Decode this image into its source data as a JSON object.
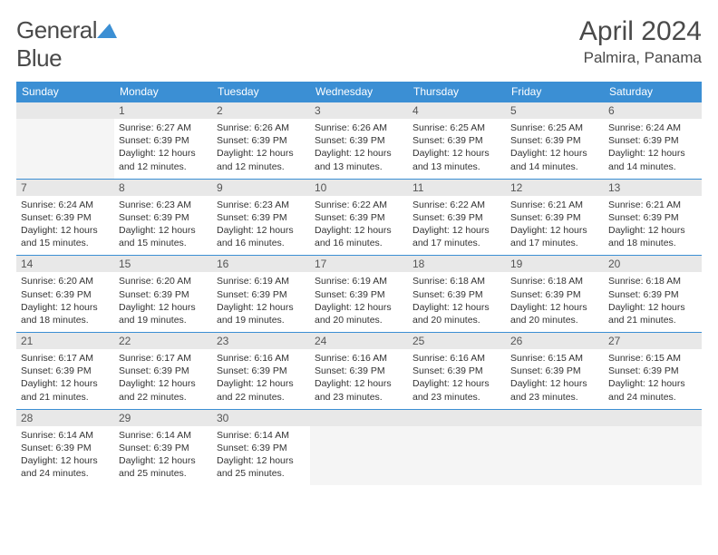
{
  "logo": {
    "text_part1": "General",
    "text_part2": "Blue"
  },
  "title": "April 2024",
  "location": "Palmira, Panama",
  "colors": {
    "header_bg": "#3b8fd4",
    "daynum_bg": "#e8e8e8",
    "text": "#333333",
    "title": "#4a4a4a"
  },
  "day_names": [
    "Sunday",
    "Monday",
    "Tuesday",
    "Wednesday",
    "Thursday",
    "Friday",
    "Saturday"
  ],
  "weeks": [
    [
      null,
      {
        "n": "1",
        "sr": "Sunrise: 6:27 AM",
        "ss": "Sunset: 6:39 PM",
        "d1": "Daylight: 12 hours",
        "d2": "and 12 minutes."
      },
      {
        "n": "2",
        "sr": "Sunrise: 6:26 AM",
        "ss": "Sunset: 6:39 PM",
        "d1": "Daylight: 12 hours",
        "d2": "and 12 minutes."
      },
      {
        "n": "3",
        "sr": "Sunrise: 6:26 AM",
        "ss": "Sunset: 6:39 PM",
        "d1": "Daylight: 12 hours",
        "d2": "and 13 minutes."
      },
      {
        "n": "4",
        "sr": "Sunrise: 6:25 AM",
        "ss": "Sunset: 6:39 PM",
        "d1": "Daylight: 12 hours",
        "d2": "and 13 minutes."
      },
      {
        "n": "5",
        "sr": "Sunrise: 6:25 AM",
        "ss": "Sunset: 6:39 PM",
        "d1": "Daylight: 12 hours",
        "d2": "and 14 minutes."
      },
      {
        "n": "6",
        "sr": "Sunrise: 6:24 AM",
        "ss": "Sunset: 6:39 PM",
        "d1": "Daylight: 12 hours",
        "d2": "and 14 minutes."
      }
    ],
    [
      {
        "n": "7",
        "sr": "Sunrise: 6:24 AM",
        "ss": "Sunset: 6:39 PM",
        "d1": "Daylight: 12 hours",
        "d2": "and 15 minutes."
      },
      {
        "n": "8",
        "sr": "Sunrise: 6:23 AM",
        "ss": "Sunset: 6:39 PM",
        "d1": "Daylight: 12 hours",
        "d2": "and 15 minutes."
      },
      {
        "n": "9",
        "sr": "Sunrise: 6:23 AM",
        "ss": "Sunset: 6:39 PM",
        "d1": "Daylight: 12 hours",
        "d2": "and 16 minutes."
      },
      {
        "n": "10",
        "sr": "Sunrise: 6:22 AM",
        "ss": "Sunset: 6:39 PM",
        "d1": "Daylight: 12 hours",
        "d2": "and 16 minutes."
      },
      {
        "n": "11",
        "sr": "Sunrise: 6:22 AM",
        "ss": "Sunset: 6:39 PM",
        "d1": "Daylight: 12 hours",
        "d2": "and 17 minutes."
      },
      {
        "n": "12",
        "sr": "Sunrise: 6:21 AM",
        "ss": "Sunset: 6:39 PM",
        "d1": "Daylight: 12 hours",
        "d2": "and 17 minutes."
      },
      {
        "n": "13",
        "sr": "Sunrise: 6:21 AM",
        "ss": "Sunset: 6:39 PM",
        "d1": "Daylight: 12 hours",
        "d2": "and 18 minutes."
      }
    ],
    [
      {
        "n": "14",
        "sr": "Sunrise: 6:20 AM",
        "ss": "Sunset: 6:39 PM",
        "d1": "Daylight: 12 hours",
        "d2": "and 18 minutes."
      },
      {
        "n": "15",
        "sr": "Sunrise: 6:20 AM",
        "ss": "Sunset: 6:39 PM",
        "d1": "Daylight: 12 hours",
        "d2": "and 19 minutes."
      },
      {
        "n": "16",
        "sr": "Sunrise: 6:19 AM",
        "ss": "Sunset: 6:39 PM",
        "d1": "Daylight: 12 hours",
        "d2": "and 19 minutes."
      },
      {
        "n": "17",
        "sr": "Sunrise: 6:19 AM",
        "ss": "Sunset: 6:39 PM",
        "d1": "Daylight: 12 hours",
        "d2": "and 20 minutes."
      },
      {
        "n": "18",
        "sr": "Sunrise: 6:18 AM",
        "ss": "Sunset: 6:39 PM",
        "d1": "Daylight: 12 hours",
        "d2": "and 20 minutes."
      },
      {
        "n": "19",
        "sr": "Sunrise: 6:18 AM",
        "ss": "Sunset: 6:39 PM",
        "d1": "Daylight: 12 hours",
        "d2": "and 20 minutes."
      },
      {
        "n": "20",
        "sr": "Sunrise: 6:18 AM",
        "ss": "Sunset: 6:39 PM",
        "d1": "Daylight: 12 hours",
        "d2": "and 21 minutes."
      }
    ],
    [
      {
        "n": "21",
        "sr": "Sunrise: 6:17 AM",
        "ss": "Sunset: 6:39 PM",
        "d1": "Daylight: 12 hours",
        "d2": "and 21 minutes."
      },
      {
        "n": "22",
        "sr": "Sunrise: 6:17 AM",
        "ss": "Sunset: 6:39 PM",
        "d1": "Daylight: 12 hours",
        "d2": "and 22 minutes."
      },
      {
        "n": "23",
        "sr": "Sunrise: 6:16 AM",
        "ss": "Sunset: 6:39 PM",
        "d1": "Daylight: 12 hours",
        "d2": "and 22 minutes."
      },
      {
        "n": "24",
        "sr": "Sunrise: 6:16 AM",
        "ss": "Sunset: 6:39 PM",
        "d1": "Daylight: 12 hours",
        "d2": "and 23 minutes."
      },
      {
        "n": "25",
        "sr": "Sunrise: 6:16 AM",
        "ss": "Sunset: 6:39 PM",
        "d1": "Daylight: 12 hours",
        "d2": "and 23 minutes."
      },
      {
        "n": "26",
        "sr": "Sunrise: 6:15 AM",
        "ss": "Sunset: 6:39 PM",
        "d1": "Daylight: 12 hours",
        "d2": "and 23 minutes."
      },
      {
        "n": "27",
        "sr": "Sunrise: 6:15 AM",
        "ss": "Sunset: 6:39 PM",
        "d1": "Daylight: 12 hours",
        "d2": "and 24 minutes."
      }
    ],
    [
      {
        "n": "28",
        "sr": "Sunrise: 6:14 AM",
        "ss": "Sunset: 6:39 PM",
        "d1": "Daylight: 12 hours",
        "d2": "and 24 minutes."
      },
      {
        "n": "29",
        "sr": "Sunrise: 6:14 AM",
        "ss": "Sunset: 6:39 PM",
        "d1": "Daylight: 12 hours",
        "d2": "and 25 minutes."
      },
      {
        "n": "30",
        "sr": "Sunrise: 6:14 AM",
        "ss": "Sunset: 6:39 PM",
        "d1": "Daylight: 12 hours",
        "d2": "and 25 minutes."
      },
      null,
      null,
      null,
      null
    ]
  ]
}
